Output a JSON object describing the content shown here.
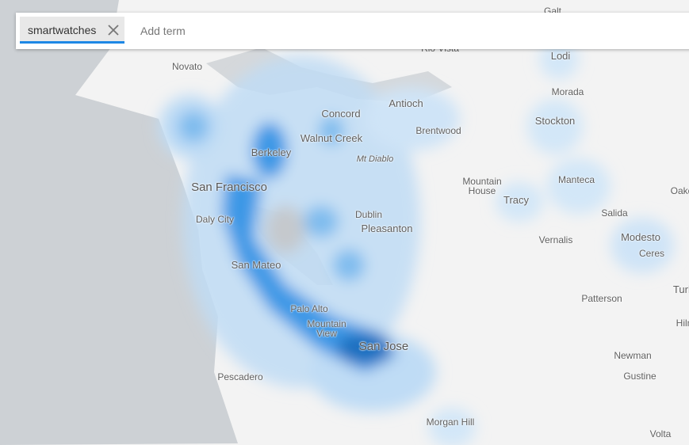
{
  "search": {
    "terms": [
      "smartwatches"
    ],
    "placeholder": "Add term"
  },
  "places": [
    "Galt",
    "Rio Vista",
    "Novato",
    "Lodi",
    "Antioch",
    "Morada",
    "Concord",
    "Stockton",
    "Brentwood",
    "Walnut Creek",
    "Berkeley",
    "Mt Diablo",
    "Manteca",
    "Mountain House",
    "San Francisco",
    "Oakdale",
    "Tracy",
    "Salida",
    "Dublin",
    "Daly City",
    "Pleasanton",
    "Modesto",
    "Vernalis",
    "Ceres",
    "San Mateo",
    "Turlock",
    "Patterson",
    "Palo Alto",
    "Hilmar",
    "Mountain View",
    "San Jose",
    "Newman",
    "Pescadero",
    "Gustine",
    "Morgan Hill",
    "Volta"
  ]
}
